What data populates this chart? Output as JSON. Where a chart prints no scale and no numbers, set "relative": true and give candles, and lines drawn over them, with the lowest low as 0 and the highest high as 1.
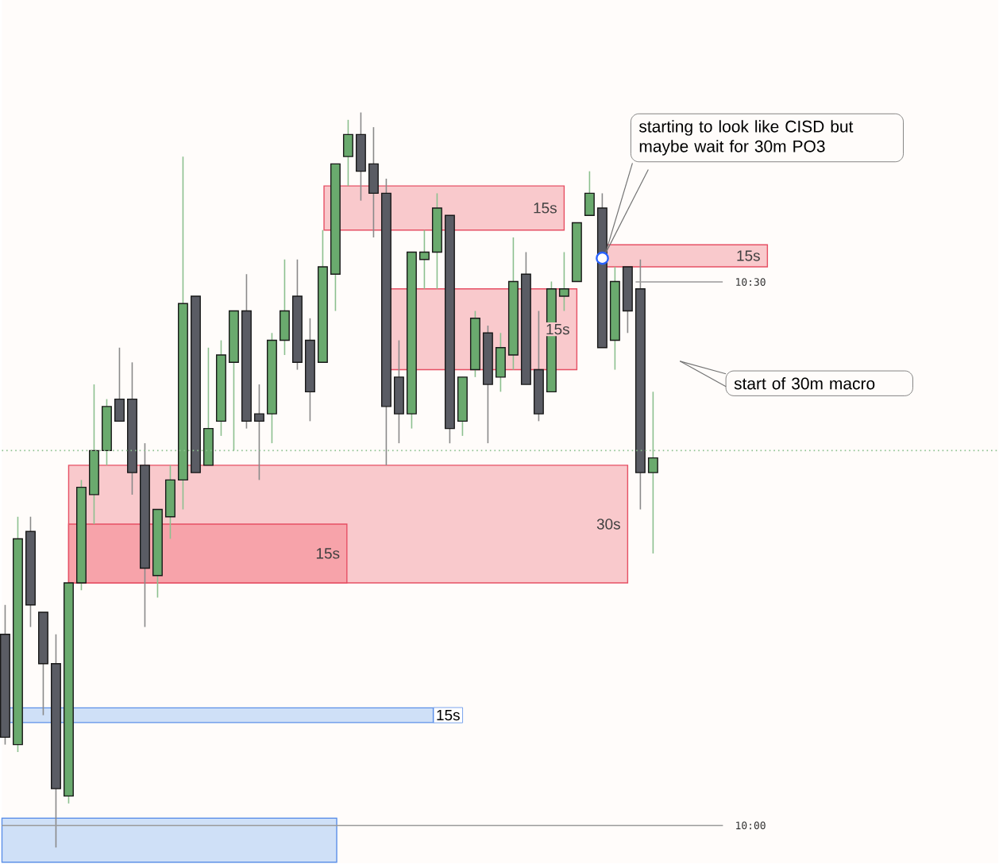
{
  "chart_data": {
    "type": "candlestick",
    "relative": true,
    "categories": [
      null,
      null,
      null,
      null,
      null,
      null,
      null,
      null,
      null,
      null,
      null,
      null,
      null,
      null,
      null,
      null,
      null,
      null,
      null,
      null,
      null,
      null,
      null,
      null,
      null,
      null,
      null,
      null,
      null,
      null,
      null,
      null,
      null,
      null,
      null,
      null,
      null,
      null,
      null,
      null,
      null,
      null,
      null,
      null,
      null,
      null,
      null,
      null,
      null,
      null,
      null,
      null
    ],
    "ohlc": [
      [
        0.29,
        0.33,
        0.14,
        0.15
      ],
      [
        0.14,
        0.45,
        0.13,
        0.42
      ],
      [
        0.43,
        0.45,
        0.3,
        0.33
      ],
      [
        0.32,
        0.32,
        0.18,
        0.25
      ],
      [
        0.25,
        0.29,
        0.0,
        0.08
      ],
      [
        0.07,
        0.36,
        0.06,
        0.36
      ],
      [
        0.36,
        0.5,
        0.35,
        0.49
      ],
      [
        0.48,
        0.63,
        0.44,
        0.54
      ],
      [
        0.54,
        0.61,
        0.52,
        0.6
      ],
      [
        0.61,
        0.68,
        0.58,
        0.58
      ],
      [
        0.61,
        0.66,
        0.48,
        0.51
      ],
      [
        0.52,
        0.55,
        0.3,
        0.38
      ],
      [
        0.37,
        0.46,
        0.34,
        0.46
      ],
      [
        0.45,
        0.52,
        0.42,
        0.5
      ],
      [
        0.5,
        0.94,
        0.46,
        0.74
      ],
      [
        0.75,
        0.75,
        0.51,
        0.51
      ],
      [
        0.52,
        0.68,
        0.52,
        0.57
      ],
      [
        0.58,
        0.69,
        0.56,
        0.67
      ],
      [
        0.66,
        0.73,
        0.54,
        0.73
      ],
      [
        0.73,
        0.78,
        0.57,
        0.58
      ],
      [
        0.59,
        0.63,
        0.5,
        0.58
      ],
      [
        0.59,
        0.7,
        0.55,
        0.69
      ],
      [
        0.69,
        0.8,
        0.67,
        0.73
      ],
      [
        0.75,
        0.8,
        0.65,
        0.66
      ],
      [
        0.69,
        0.72,
        0.58,
        0.62
      ],
      [
        0.66,
        0.84,
        0.66,
        0.79
      ],
      [
        0.78,
        0.93,
        0.73,
        0.93
      ],
      [
        0.94,
        0.99,
        0.9,
        0.97
      ],
      [
        0.97,
        1.0,
        0.88,
        0.92
      ],
      [
        0.93,
        0.98,
        0.83,
        0.89
      ],
      [
        0.89,
        0.91,
        0.52,
        0.6
      ],
      [
        0.64,
        0.69,
        0.55,
        0.59
      ],
      [
        0.59,
        0.81,
        0.57,
        0.81
      ],
      [
        0.8,
        0.84,
        0.76,
        0.81
      ],
      [
        0.81,
        0.89,
        0.76,
        0.87
      ],
      [
        0.86,
        0.86,
        0.55,
        0.57
      ],
      [
        0.58,
        0.64,
        0.56,
        0.64
      ],
      [
        0.65,
        0.73,
        0.64,
        0.72
      ],
      [
        0.7,
        0.71,
        0.55,
        0.63
      ],
      [
        0.64,
        0.7,
        0.62,
        0.68
      ],
      [
        0.67,
        0.83,
        0.65,
        0.77
      ],
      [
        0.78,
        0.81,
        0.63,
        0.63
      ],
      [
        0.65,
        0.73,
        0.58,
        0.59
      ],
      [
        0.62,
        0.77,
        0.62,
        0.76
      ],
      [
        0.75,
        0.81,
        0.73,
        0.76
      ],
      [
        0.77,
        0.85,
        0.77,
        0.85
      ],
      [
        0.86,
        0.92,
        0.86,
        0.89
      ],
      [
        0.87,
        0.89,
        0.68,
        0.68
      ],
      [
        0.69,
        0.79,
        0.65,
        0.77
      ],
      [
        0.79,
        0.79,
        0.7,
        0.73
      ],
      [
        0.76,
        0.8,
        0.46,
        0.51
      ],
      [
        0.51,
        0.62,
        0.4,
        0.53
      ]
    ],
    "bands": [
      {
        "axis": "y",
        "from": 0.52,
        "to": 0.36,
        "label": "30s",
        "color": "#f9c9cc"
      },
      {
        "axis": "y",
        "from": 0.44,
        "to": 0.36,
        "label": "15s",
        "color": "#f7a3aa"
      },
      {
        "axis": "y",
        "from": 0.9,
        "to": 0.84,
        "label": "15s",
        "color": "#f9c9cc"
      },
      {
        "axis": "y",
        "from": 0.76,
        "to": 0.65,
        "label": "15s",
        "color": "#f9c9cc"
      },
      {
        "axis": "y",
        "from": 0.82,
        "to": 0.79,
        "label": "15s",
        "color": "#f9c9cc"
      },
      {
        "axis": "y",
        "from": 0.19,
        "to": 0.17,
        "label": "15s",
        "color": "#cfe0f7"
      },
      {
        "axis": "y",
        "from": 0.04,
        "to": -0.02,
        "color": "#cfe0f7"
      }
    ],
    "ref_lines": [
      {
        "axis": "y",
        "value": 0.54,
        "color": "#8cc08f",
        "line_style": "dotted"
      },
      {
        "axis": "y",
        "value": 0.03,
        "color": "#9a9a9a",
        "line_style": "solid"
      }
    ],
    "annotations": [
      "starting to look like CISD but maybe wait for 30m PO3",
      "start of 30m macro",
      "10:30",
      "10:00"
    ]
  }
}
